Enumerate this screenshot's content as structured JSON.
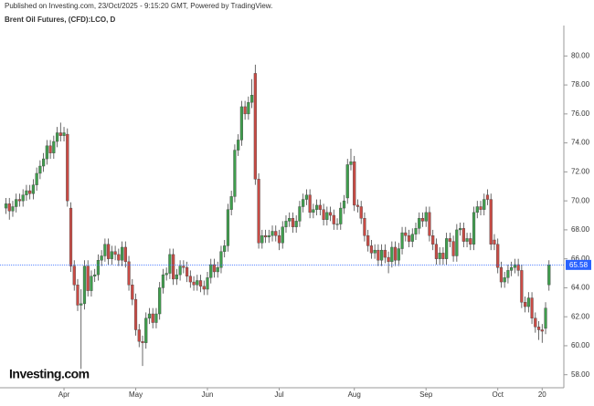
{
  "published": "Published on Investing.com, 23/Oct/2025 - 9:15:20 GMT, Powered by TradingView.",
  "logo": "Investing.com",
  "chart_data": {
    "type": "candlestick",
    "title": "Brent Oil Futures, (CFD):LCO, D",
    "up_color": "#3f9e4d",
    "down_color": "#c94b45",
    "wick_color": "#444444",
    "price_line_color": "#2962ff",
    "ylim": [
      57.1,
      82.1
    ],
    "yticks": [
      {
        "value": 58,
        "label": "58.00"
      },
      {
        "value": 60,
        "label": "60.00"
      },
      {
        "value": 62,
        "label": "62.00"
      },
      {
        "value": 64,
        "label": "64.00"
      },
      {
        "value": 66,
        "label": "66.00"
      },
      {
        "value": 68,
        "label": "68.00"
      },
      {
        "value": 70,
        "label": "70.00"
      },
      {
        "value": 72,
        "label": "72.00"
      },
      {
        "value": 74,
        "label": "74.00"
      },
      {
        "value": 76,
        "label": "76.00"
      },
      {
        "value": 78,
        "label": "78.00"
      },
      {
        "value": 80,
        "label": "80.00"
      }
    ],
    "categories": [
      null,
      null,
      null,
      null,
      null,
      null,
      null,
      null,
      null,
      null,
      null,
      null,
      null,
      null,
      null,
      null,
      null,
      "Apr",
      null,
      null,
      null,
      null,
      null,
      null,
      null,
      null,
      null,
      null,
      null,
      null,
      null,
      null,
      null,
      null,
      null,
      null,
      null,
      null,
      "May",
      null,
      null,
      null,
      null,
      null,
      null,
      null,
      null,
      null,
      null,
      null,
      null,
      null,
      null,
      null,
      null,
      null,
      null,
      null,
      null,
      "Jun",
      null,
      null,
      null,
      null,
      null,
      null,
      null,
      null,
      null,
      null,
      null,
      null,
      null,
      null,
      null,
      null,
      null,
      null,
      null,
      null,
      "Jul",
      null,
      null,
      null,
      null,
      null,
      null,
      null,
      null,
      null,
      null,
      null,
      null,
      null,
      null,
      null,
      null,
      null,
      null,
      null,
      null,
      null,
      "Aug",
      null,
      null,
      null,
      null,
      null,
      null,
      null,
      null,
      null,
      null,
      null,
      null,
      null,
      null,
      null,
      null,
      null,
      null,
      null,
      null,
      "Sep",
      null,
      null,
      null,
      null,
      null,
      null,
      null,
      null,
      null,
      null,
      null,
      null,
      null,
      null,
      null,
      null,
      null,
      null,
      null,
      null,
      "Oct",
      null,
      null,
      null,
      null,
      null,
      null,
      null,
      null,
      null,
      null,
      null,
      null,
      "20",
      null,
      null
    ],
    "open": [
      69.5,
      69.8,
      69.3,
      69.6,
      70.1,
      70.0,
      70.4,
      70.7,
      70.5,
      71.1,
      71.9,
      72.4,
      72.9,
      73.8,
      73.3,
      74.1,
      74.7,
      74.5,
      74.6,
      69.5,
      65.5,
      64.2,
      62.8,
      62.9,
      65.5,
      63.8,
      64.8,
      64.9,
      65.9,
      66.2,
      67.0,
      66.0,
      66.5,
      66.3,
      65.9,
      66.8,
      65.8,
      64.2,
      63.2,
      61.1,
      60.3,
      60.2,
      61.9,
      62.2,
      61.6,
      62.2,
      64.0,
      64.9,
      65.0,
      66.3,
      64.6,
      64.9,
      65.5,
      65.4,
      64.8,
      64.4,
      64.2,
      64.5,
      64.1,
      63.9,
      64.7,
      65.6,
      65.1,
      65.4,
      66.5,
      66.9,
      69.4,
      70.3,
      73.5,
      74.2,
      76.5,
      76.0,
      76.8,
      78.8,
      71.5,
      67.1,
      67.6,
      67.5,
      67.6,
      67.9,
      67.6,
      67.1,
      68.2,
      68.6,
      68.8,
      68.2,
      68.6,
      69.6,
      70.1,
      70.4,
      69.2,
      69.4,
      69.7,
      69.4,
      68.7,
      69.2,
      69.0,
      68.4,
      68.4,
      69.5,
      70.2,
      72.5,
      72.7,
      69.7,
      69.6,
      68.8,
      67.6,
      66.9,
      66.4,
      66.6,
      65.9,
      66.6,
      66.1,
      65.8,
      66.8,
      65.9,
      66.7,
      67.8,
      67.6,
      67.2,
      67.7,
      68.1,
      68.8,
      68.6,
      69.2,
      67.6,
      67.0,
      66.0,
      66.4,
      66.0,
      67.4,
      67.2,
      66.2,
      68.0,
      68.1,
      67.2,
      67.4,
      67.0,
      69.2,
      69.6,
      69.4,
      70.4,
      70.1,
      67.3,
      67.0,
      65.4,
      64.4,
      64.7,
      65.2,
      65.4,
      65.6,
      65.2,
      63.0,
      62.7,
      63.3,
      61.9,
      61.3,
      61.1,
      61.2,
      64.2
    ],
    "high": [
      70.2,
      70.2,
      70.0,
      70.5,
      70.5,
      70.8,
      71.1,
      71.1,
      71.5,
      72.3,
      72.8,
      73.3,
      74.2,
      74.2,
      74.5,
      75.1,
      75.4,
      75.1,
      75.0,
      69.9,
      65.9,
      64.6,
      63.9,
      65.9,
      65.9,
      65.2,
      65.3,
      66.3,
      66.6,
      67.4,
      67.4,
      66.9,
      66.9,
      66.7,
      67.2,
      67.2,
      66.2,
      64.6,
      63.6,
      61.5,
      60.7,
      62.3,
      62.6,
      62.6,
      62.6,
      64.4,
      65.3,
      65.4,
      66.7,
      66.7,
      65.3,
      65.9,
      65.9,
      65.8,
      65.2,
      64.8,
      64.9,
      64.9,
      64.5,
      65.1,
      66.0,
      66.0,
      65.8,
      66.9,
      67.3,
      69.8,
      70.7,
      73.9,
      74.6,
      76.9,
      76.9,
      77.2,
      78.4,
      79.4,
      71.9,
      68.0,
      68.0,
      68.0,
      68.3,
      68.3,
      68.0,
      68.6,
      69.0,
      69.2,
      69.2,
      69.0,
      70.0,
      70.5,
      70.8,
      70.8,
      69.8,
      70.1,
      70.1,
      69.8,
      69.6,
      69.6,
      69.4,
      68.8,
      69.9,
      70.4,
      72.9,
      73.6,
      73.1,
      70.1,
      70.0,
      69.2,
      68.0,
      67.3,
      67.0,
      67.0,
      67.0,
      67.0,
      66.5,
      67.2,
      67.2,
      67.1,
      68.2,
      68.2,
      68.0,
      68.1,
      68.5,
      69.2,
      69.2,
      69.6,
      69.6,
      68.0,
      67.4,
      66.8,
      66.8,
      67.8,
      67.8,
      67.6,
      68.4,
      68.5,
      68.5,
      67.8,
      67.8,
      69.6,
      70.0,
      70.0,
      70.5,
      70.8,
      70.5,
      67.7,
      67.4,
      65.8,
      65.1,
      65.6,
      65.8,
      66.0,
      66.0,
      65.6,
      63.4,
      63.7,
      63.7,
      62.3,
      61.7,
      61.5,
      63.0,
      65.9
    ],
    "low": [
      69.1,
      68.7,
      68.9,
      69.2,
      69.6,
      69.6,
      70.0,
      70.1,
      70.1,
      70.7,
      71.5,
      72.0,
      72.5,
      72.9,
      72.9,
      73.7,
      74.1,
      74.1,
      69.6,
      65.1,
      63.8,
      62.4,
      58.4,
      62.5,
      63.4,
      63.4,
      64.4,
      64.5,
      65.5,
      65.8,
      65.6,
      65.6,
      65.9,
      65.5,
      65.5,
      65.4,
      63.8,
      62.8,
      60.7,
      59.9,
      58.6,
      59.8,
      61.5,
      61.2,
      61.2,
      61.8,
      63.6,
      64.5,
      64.6,
      64.2,
      64.2,
      64.5,
      65.0,
      64.4,
      64.0,
      63.8,
      63.8,
      63.7,
      63.5,
      63.5,
      64.3,
      64.7,
      64.7,
      65.0,
      66.1,
      66.5,
      69.0,
      69.9,
      73.1,
      73.8,
      75.6,
      75.6,
      76.4,
      71.1,
      66.7,
      66.7,
      67.1,
      67.1,
      67.2,
      67.2,
      66.6,
      66.7,
      67.8,
      68.2,
      67.8,
      67.8,
      68.2,
      69.2,
      69.7,
      68.8,
      68.8,
      69.0,
      69.0,
      68.3,
      68.3,
      68.6,
      68.0,
      68.0,
      68.0,
      69.1,
      69.8,
      72.1,
      69.3,
      69.2,
      68.4,
      67.2,
      66.5,
      66.0,
      66.0,
      65.5,
      65.5,
      65.7,
      65.0,
      65.4,
      65.5,
      65.5,
      66.3,
      67.2,
      66.8,
      66.8,
      67.3,
      67.7,
      68.2,
      68.2,
      67.2,
      66.6,
      65.6,
      65.6,
      65.6,
      65.6,
      66.8,
      65.8,
      65.8,
      67.6,
      66.8,
      66.8,
      66.6,
      66.6,
      68.8,
      69.0,
      69.0,
      69.7,
      66.6,
      66.6,
      65.0,
      64.0,
      64.0,
      64.3,
      64.8,
      65.0,
      64.8,
      62.6,
      62.3,
      62.3,
      61.5,
      60.9,
      60.4,
      60.2,
      60.8,
      63.8
    ],
    "close": [
      69.8,
      69.3,
      69.6,
      70.1,
      70.0,
      70.4,
      70.7,
      70.5,
      71.1,
      71.9,
      72.4,
      72.9,
      73.8,
      73.3,
      74.1,
      74.7,
      74.5,
      74.7,
      70.0,
      65.5,
      64.2,
      62.8,
      62.9,
      65.5,
      63.8,
      64.8,
      64.9,
      65.9,
      66.2,
      67.0,
      66.0,
      66.5,
      66.3,
      65.9,
      66.8,
      65.8,
      64.2,
      63.2,
      61.1,
      60.3,
      60.2,
      61.9,
      62.2,
      61.6,
      62.2,
      64.0,
      64.9,
      65.0,
      66.3,
      64.6,
      64.9,
      65.5,
      65.4,
      64.8,
      64.4,
      64.2,
      64.5,
      64.1,
      63.9,
      64.7,
      65.6,
      65.1,
      65.4,
      66.5,
      66.9,
      69.4,
      70.3,
      73.5,
      74.2,
      76.5,
      76.0,
      76.8,
      77.3,
      71.5,
      67.1,
      67.6,
      67.5,
      67.6,
      67.9,
      67.6,
      67.1,
      68.2,
      68.6,
      68.8,
      68.2,
      68.6,
      69.6,
      70.1,
      70.4,
      69.2,
      69.4,
      69.7,
      69.4,
      68.7,
      69.2,
      69.0,
      68.4,
      68.4,
      69.5,
      70.0,
      72.5,
      72.7,
      69.7,
      69.6,
      68.8,
      67.6,
      66.9,
      66.4,
      66.6,
      65.9,
      66.6,
      66.1,
      65.8,
      66.8,
      65.9,
      66.7,
      67.8,
      67.6,
      67.2,
      67.7,
      68.1,
      68.8,
      68.6,
      69.2,
      67.6,
      67.0,
      66.0,
      66.4,
      66.0,
      67.4,
      67.2,
      66.2,
      68.0,
      68.1,
      67.2,
      67.4,
      67.0,
      69.2,
      69.6,
      69.4,
      70.1,
      70.1,
      67.0,
      67.0,
      65.4,
      64.4,
      64.7,
      65.2,
      65.4,
      65.6,
      65.2,
      63.0,
      62.7,
      63.3,
      61.9,
      61.3,
      61.1,
      61.0,
      62.6,
      65.58
    ]
  }
}
